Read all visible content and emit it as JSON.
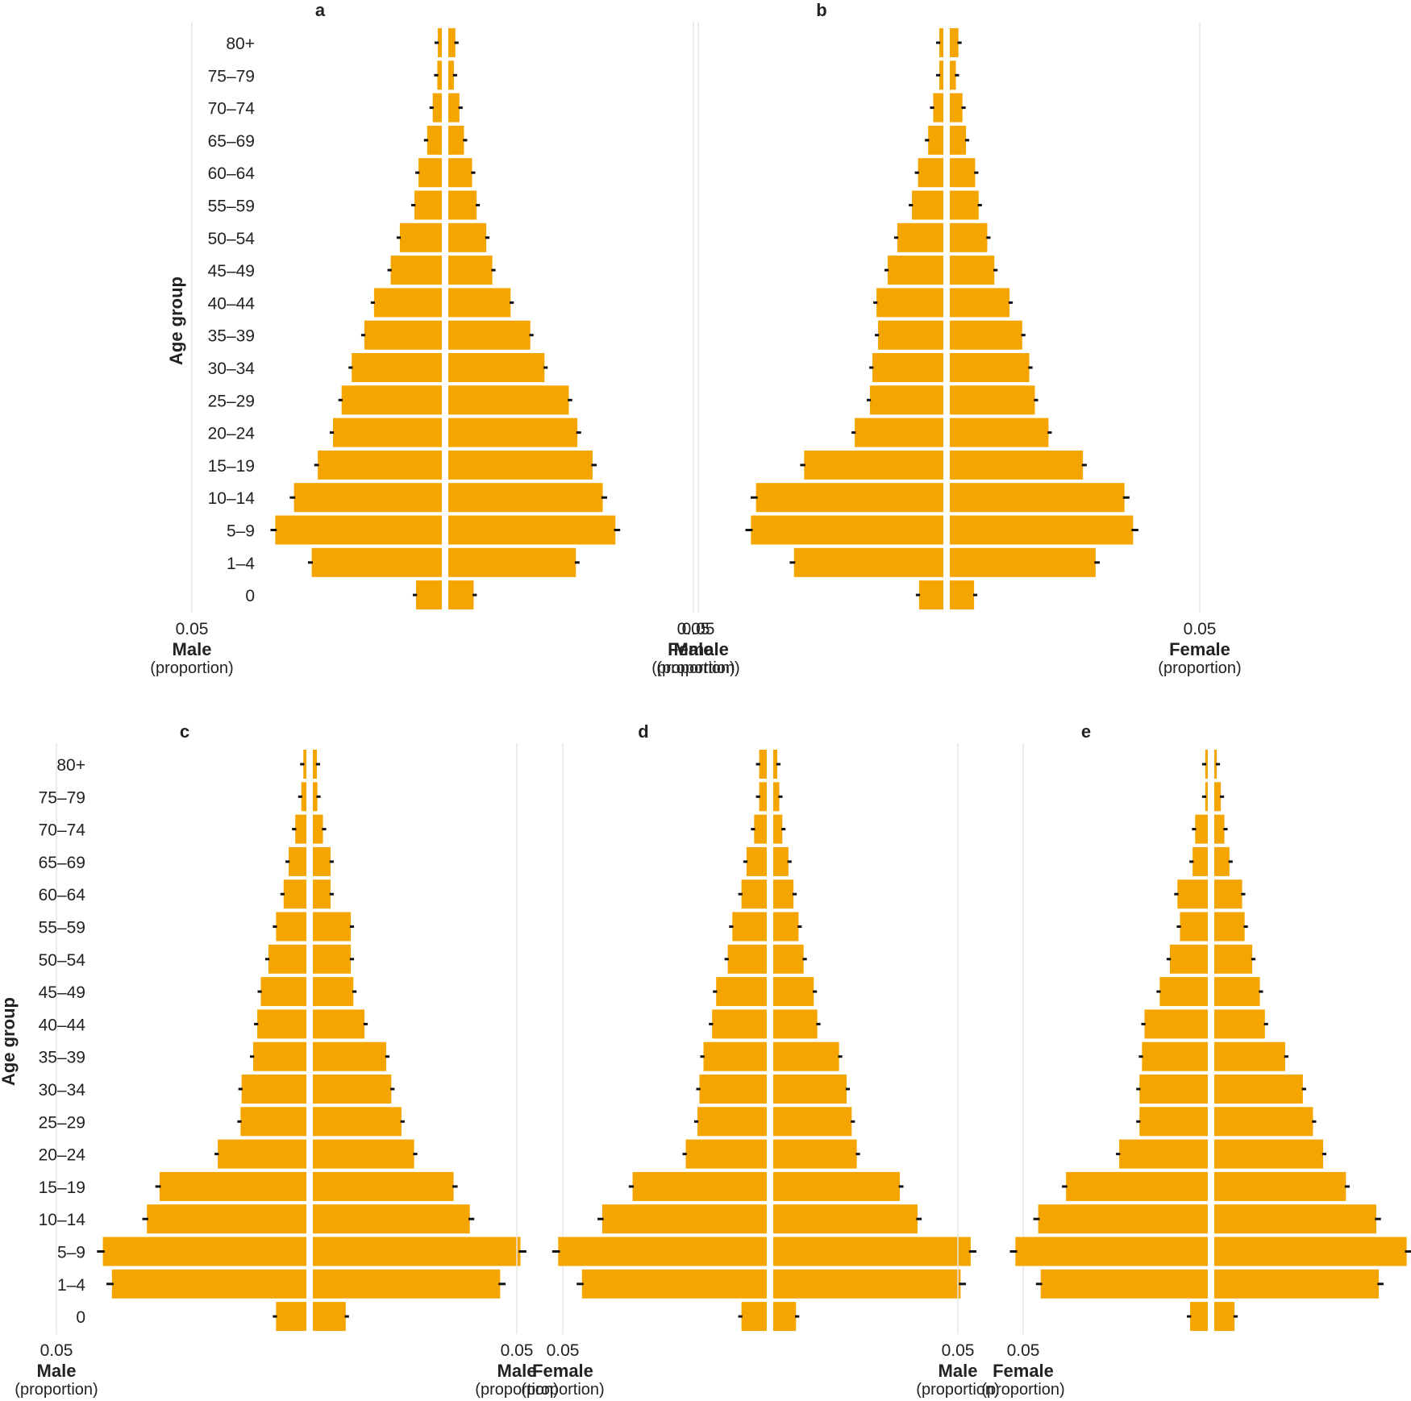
{
  "bar_color": "#F5A500",
  "grid_color": "#E6E6E6",
  "age_axis_label": "Age group",
  "age_groups": [
    "80+",
    "75–79",
    "70–74",
    "65–69",
    "60–64",
    "55–59",
    "50–54",
    "45–49",
    "40–44",
    "35–39",
    "30–34",
    "25–29",
    "20–24",
    "15–19",
    "10–14",
    "5–9",
    "1–4",
    "0"
  ],
  "chart_data": [
    {
      "type": "bar",
      "panel": "a",
      "xlim": [
        0,
        0.066
      ],
      "tick_value": 0.05,
      "tick_label": "0.05",
      "male_label": "Male",
      "female_label": "Female",
      "unit_label": "(proportion)",
      "male": [
        0.0008,
        0.0009,
        0.0018,
        0.0029,
        0.0046,
        0.0054,
        0.0083,
        0.0101,
        0.0134,
        0.0153,
        0.0178,
        0.0198,
        0.0215,
        0.0245,
        0.0292,
        0.0329,
        0.0257,
        0.0051
      ],
      "female": [
        0.0014,
        0.0011,
        0.0022,
        0.0031,
        0.0047,
        0.0056,
        0.0075,
        0.0087,
        0.0123,
        0.0162,
        0.019,
        0.0238,
        0.0255,
        0.0285,
        0.0305,
        0.033,
        0.0252,
        0.005
      ]
    },
    {
      "type": "bar",
      "panel": "b",
      "xlim": [
        0,
        0.066
      ],
      "tick_value": 0.05,
      "tick_label": "0.05",
      "male_label": "Male",
      "female_label": "Female",
      "unit_label": "(proportion)",
      "male": [
        0.0008,
        0.0008,
        0.002,
        0.003,
        0.005,
        0.0062,
        0.0091,
        0.011,
        0.0132,
        0.0129,
        0.014,
        0.0145,
        0.0175,
        0.0275,
        0.037,
        0.038,
        0.0295,
        0.0048
      ],
      "female": [
        0.0017,
        0.0012,
        0.0025,
        0.0032,
        0.005,
        0.0057,
        0.0074,
        0.0088,
        0.0118,
        0.0143,
        0.0157,
        0.0168,
        0.0195,
        0.0263,
        0.0345,
        0.0362,
        0.0288,
        0.0048
      ]
    },
    {
      "type": "bar",
      "panel": "c",
      "xlim": [
        0,
        0.066
      ],
      "tick_value": 0.05,
      "tick_label": "0.05",
      "male_label": "Male",
      "female_label": "Female",
      "unit_label": "(proportion)",
      "male": [
        0.0006,
        0.001,
        0.0022,
        0.0035,
        0.0045,
        0.006,
        0.0075,
        0.009,
        0.0097,
        0.0105,
        0.0128,
        0.013,
        0.0175,
        0.029,
        0.0315,
        0.0402,
        0.0384,
        0.006
      ],
      "female": [
        0.0008,
        0.0009,
        0.002,
        0.0035,
        0.0035,
        0.0075,
        0.0075,
        0.008,
        0.0102,
        0.0145,
        0.0155,
        0.0175,
        0.02,
        0.0278,
        0.031,
        0.041,
        0.037,
        0.0065
      ]
    },
    {
      "type": "bar",
      "panel": "d",
      "xlim": [
        0,
        0.066
      ],
      "tick_value": 0.05,
      "tick_label": "0.05",
      "male_label": "Male",
      "female_label": "Female",
      "unit_label": "(proportion)",
      "male": [
        0.0015,
        0.0015,
        0.0025,
        0.004,
        0.005,
        0.0068,
        0.0077,
        0.01,
        0.0108,
        0.0125,
        0.0133,
        0.0137,
        0.016,
        0.0265,
        0.0325,
        0.0412,
        0.0365,
        0.005
      ],
      "female": [
        0.0008,
        0.0012,
        0.0018,
        0.003,
        0.004,
        0.005,
        0.006,
        0.008,
        0.0087,
        0.013,
        0.0145,
        0.0155,
        0.0165,
        0.025,
        0.0285,
        0.039,
        0.037,
        0.0045
      ]
    },
    {
      "type": "bar",
      "panel": "e",
      "xlim": [
        0,
        0.066
      ],
      "tick_value": 0.05,
      "tick_label": "0.05",
      "male_label": "Male",
      "female_label": "Female",
      "unit_label": "(proportion)",
      "male": [
        0.0005,
        0.0005,
        0.0025,
        0.003,
        0.006,
        0.0055,
        0.0075,
        0.0095,
        0.0125,
        0.013,
        0.0135,
        0.0135,
        0.0175,
        0.028,
        0.0335,
        0.038,
        0.033,
        0.0035
      ],
      "female": [
        0.0005,
        0.0013,
        0.002,
        0.003,
        0.0055,
        0.006,
        0.0075,
        0.009,
        0.01,
        0.014,
        0.0175,
        0.0195,
        0.0215,
        0.026,
        0.032,
        0.038,
        0.0325,
        0.004
      ]
    }
  ]
}
